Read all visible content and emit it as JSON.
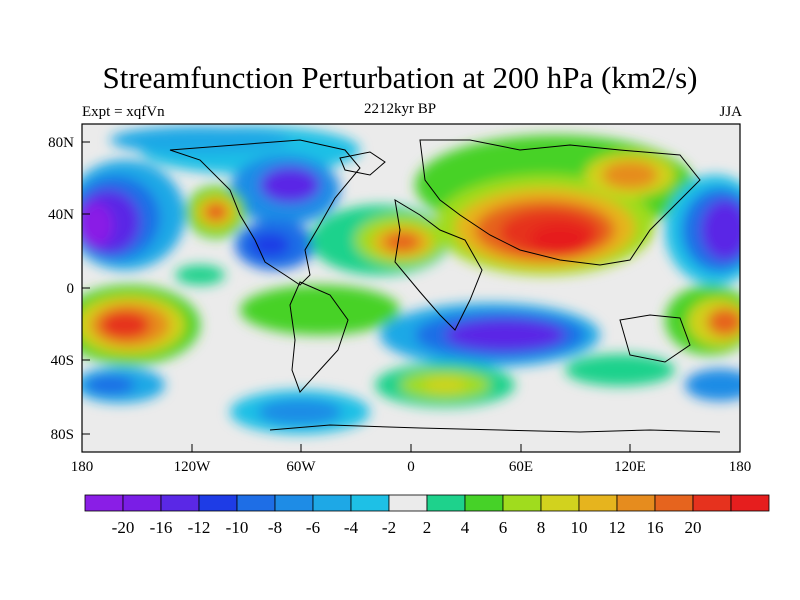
{
  "title": "Streamfunction Perturbation at 200 hPa (km2/s)",
  "left_label": "Expt = xqfVn",
  "center_label": "2212kyr BP",
  "right_label": "JJA",
  "lat_ticks": [
    "80N",
    "40N",
    "0",
    "40S",
    "80S"
  ],
  "lon_ticks": [
    "180",
    "120W",
    "60W",
    "0",
    "60E",
    "120E",
    "180"
  ],
  "colorbar": {
    "colors": [
      "#8a1ee6",
      "#7a1ee6",
      "#5a28e6",
      "#1e3ce6",
      "#1e6ee6",
      "#1e8ce6",
      "#1ea8e6",
      "#1ec0e6",
      "#ebebeb",
      "#1ed28c",
      "#46d228",
      "#a0dc1e",
      "#d2d21e",
      "#e6b41e",
      "#e68c1e",
      "#e6641e",
      "#e6321e",
      "#e61e1e"
    ],
    "labels": [
      "-20",
      "-16",
      "-12",
      "-10",
      "-8",
      "-6",
      "-4",
      "-2",
      "2",
      "4",
      "6",
      "8",
      "10",
      "12",
      "16",
      "20"
    ]
  },
  "chart_data": {
    "type": "heatmap",
    "title": "Streamfunction Perturbation at 200 hPa (km2/s)",
    "subtitle": "2212kyr BP",
    "season": "JJA",
    "experiment": "xqfVn",
    "lon_range": [
      -180,
      180
    ],
    "lat_range": [
      -90,
      90
    ],
    "contour_levels": [
      -20,
      -16,
      -12,
      -10,
      -8,
      -6,
      -4,
      -2,
      2,
      4,
      6,
      8,
      10,
      12,
      16,
      20
    ],
    "features": [
      {
        "lon": -160,
        "lat": 33,
        "value": -18
      },
      {
        "lon": -110,
        "lat": 40,
        "value": 14
      },
      {
        "lon": -75,
        "lat": 55,
        "value": -12
      },
      {
        "lon": -80,
        "lat": 22,
        "value": -10
      },
      {
        "lon": -3,
        "lat": 22,
        "value": 12
      },
      {
        "lon": 65,
        "lat": 30,
        "value": 20
      },
      {
        "lon": 115,
        "lat": 62,
        "value": 12
      },
      {
        "lon": 165,
        "lat": 35,
        "value": -20
      },
      {
        "lon": -160,
        "lat": -22,
        "value": 18
      },
      {
        "lon": 170,
        "lat": -22,
        "value": 16
      },
      {
        "lon": 60,
        "lat": -30,
        "value": -18
      },
      {
        "lon": 20,
        "lat": -55,
        "value": 8
      },
      {
        "lon": -70,
        "lat": -70,
        "value": -8
      }
    ]
  }
}
